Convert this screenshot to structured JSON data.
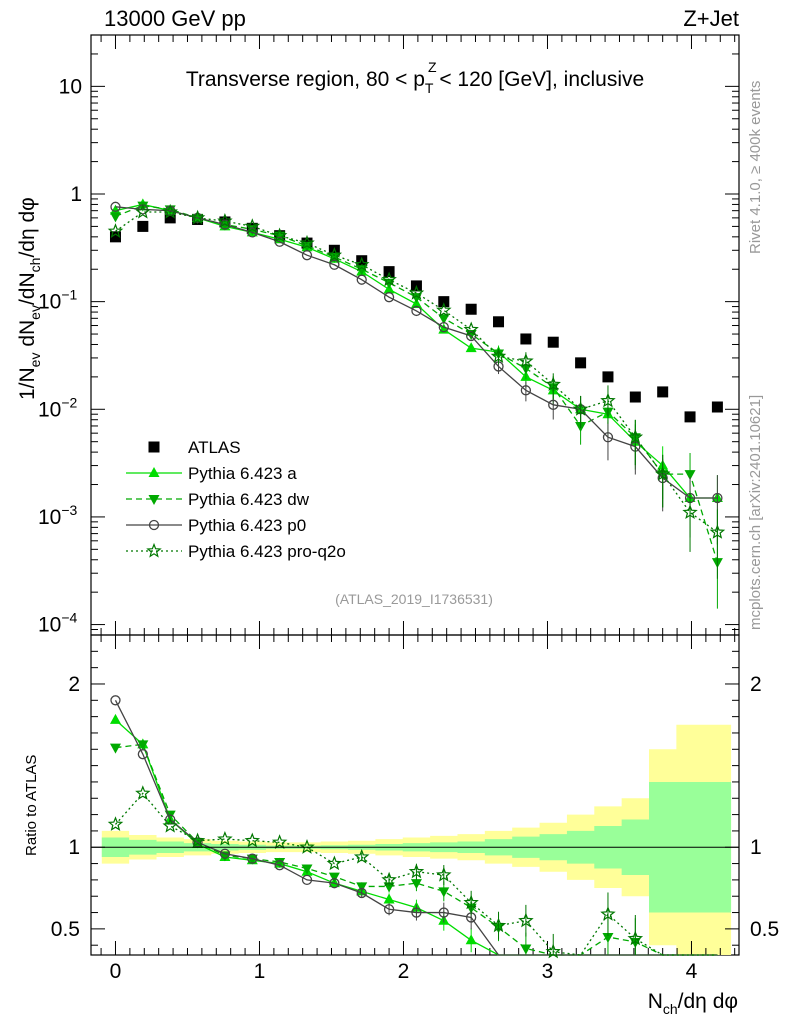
{
  "header": {
    "left": "13000 GeV pp",
    "right": "Z+Jet",
    "title_part1": "Transverse region, 80 < p",
    "title_sup": "Z",
    "title_sub": "T",
    "title_part2": " < 120 [GeV], inclusive"
  },
  "side_labels": {
    "rivet": "Rivet 4.1.0, ≥ 400k events",
    "mcplots": "mcplots.cern.ch [arXiv:2401.10621]"
  },
  "analysis_tag": "(ATLAS_2019_I1736531)",
  "colors": {
    "data": "#000000",
    "a": "#00dd00",
    "dw": "#00aa00",
    "p0": "#444444",
    "proq2o": "#007700",
    "band_yellow": "#ffff99",
    "band_green": "#99ff99"
  },
  "chart_data": [
    {
      "type": "scatter",
      "yscale": "log",
      "ylabel": "1/N_ev dN_ev/dN_ch/dη dφ",
      "ylim": [
        8e-05,
        30
      ],
      "xlim": [
        -0.17,
        4.33
      ],
      "yticks": [
        "10",
        "1",
        "10^-1",
        "10^-2",
        "10^-3",
        "10^-4"
      ],
      "legend_position": "middle-left",
      "legend": [
        "ATLAS",
        "Pythia 6.423 a",
        "Pythia 6.423 dw",
        "Pythia 6.423 p0",
        "Pythia 6.423 pro-q2o"
      ],
      "x": [
        0,
        0.19,
        0.38,
        0.57,
        0.76,
        0.95,
        1.14,
        1.33,
        1.52,
        1.71,
        1.9,
        2.09,
        2.28,
        2.47,
        2.66,
        2.85,
        3.04,
        3.23,
        3.42,
        3.61,
        3.8,
        3.99,
        4.18
      ],
      "series": [
        {
          "name": "ATLAS",
          "marker": "square",
          "values": [
            0.4,
            0.5,
            0.6,
            0.58,
            0.55,
            0.48,
            0.41,
            0.35,
            0.3,
            0.24,
            0.19,
            0.14,
            0.1,
            0.085,
            0.065,
            0.045,
            0.042,
            0.027,
            0.02,
            0.013,
            0.0145,
            0.0085,
            0.0105
          ]
        },
        {
          "name": "Pythia 6.423 a",
          "marker": "triangle-up",
          "line": "solid",
          "values": [
            0.7,
            0.8,
            0.7,
            0.6,
            0.5,
            0.44,
            0.38,
            0.32,
            0.25,
            0.19,
            0.13,
            0.095,
            0.055,
            0.037,
            0.034,
            0.02,
            0.015,
            0.01,
            0.009,
            0.005,
            0.003,
            0.0015,
            0.0015
          ]
        },
        {
          "name": "Pythia 6.423 dw",
          "marker": "triangle-down",
          "line": "dashed",
          "values": [
            0.62,
            0.78,
            0.72,
            0.6,
            0.52,
            0.47,
            0.41,
            0.33,
            0.26,
            0.2,
            0.15,
            0.11,
            0.07,
            0.05,
            0.033,
            0.024,
            0.016,
            0.007,
            0.0095,
            0.0055,
            0.0025,
            0.0025,
            0.00038
          ]
        },
        {
          "name": "Pythia 6.423 p0",
          "marker": "circle-open",
          "line": "solid",
          "values": [
            0.76,
            0.72,
            0.7,
            0.6,
            0.52,
            0.44,
            0.36,
            0.27,
            0.22,
            0.16,
            0.11,
            0.082,
            0.058,
            0.048,
            0.025,
            0.015,
            0.011,
            0.01,
            0.0055,
            0.0045,
            0.0023,
            0.0015,
            0.0015
          ]
        },
        {
          "name": "Pythia 6.423 pro-q2o",
          "marker": "star-open",
          "line": "dotted",
          "values": [
            0.45,
            0.68,
            0.68,
            0.6,
            0.56,
            0.5,
            0.41,
            0.35,
            0.27,
            0.22,
            0.16,
            0.12,
            0.083,
            0.055,
            0.031,
            0.028,
            0.017,
            0.01,
            0.012,
            0.0055,
            0.0025,
            0.0011,
            0.00072
          ]
        }
      ]
    },
    {
      "type": "scatter",
      "yscale": "linear",
      "ylabel": "Ratio to ATLAS",
      "xlabel": "N_ch/dη dφ",
      "ylim": [
        0.34,
        2.3
      ],
      "xlim": [
        -0.17,
        4.33
      ],
      "xticks": [
        "0",
        "1",
        "2",
        "3",
        "4"
      ],
      "yticks": [
        "0.5",
        "1",
        "2"
      ],
      "x": [
        0,
        0.19,
        0.38,
        0.57,
        0.76,
        0.95,
        1.14,
        1.33,
        1.52,
        1.71,
        1.9,
        2.09,
        2.28,
        2.47,
        2.66,
        2.85,
        3.04,
        3.23,
        3.42,
        3.61,
        3.8,
        3.99,
        4.18
      ],
      "bands": {
        "yellow_halfwidth": [
          0.1,
          0.075,
          0.06,
          0.05,
          0.04,
          0.035,
          0.03,
          0.03,
          0.035,
          0.04,
          0.05,
          0.06,
          0.07,
          0.08,
          0.1,
          0.12,
          0.15,
          0.2,
          0.25,
          0.3,
          0.6,
          0.75,
          0.75
        ],
        "green_halfwidth": [
          0.06,
          0.045,
          0.035,
          0.025,
          0.02,
          0.015,
          0.01,
          0.01,
          0.012,
          0.015,
          0.02,
          0.025,
          0.03,
          0.035,
          0.05,
          0.065,
          0.08,
          0.1,
          0.13,
          0.17,
          0.4,
          0.4,
          0.4
        ]
      },
      "series": [
        {
          "name": "Pythia 6.423 a",
          "values": [
            1.78,
            1.63,
            1.17,
            1.02,
            0.94,
            0.92,
            0.9,
            0.85,
            0.78,
            0.73,
            0.68,
            0.63,
            0.55,
            0.43,
            0.34,
            0.34,
            0.34,
            0.34,
            0.34,
            0.34,
            0.34,
            0.34,
            0.34
          ]
        },
        {
          "name": "Pythia 6.423 dw",
          "values": [
            1.61,
            1.63,
            1.2,
            1.03,
            0.95,
            0.93,
            0.91,
            0.87,
            0.82,
            0.76,
            0.76,
            0.78,
            0.73,
            0.63,
            0.51,
            0.38,
            0.34,
            0.34,
            0.45,
            0.42,
            0.34,
            0.34,
            0.34
          ]
        },
        {
          "name": "Pythia 6.423 p0",
          "values": [
            1.9,
            1.57,
            1.17,
            1.03,
            0.96,
            0.93,
            0.89,
            0.8,
            0.78,
            0.72,
            0.62,
            0.6,
            0.6,
            0.57,
            0.34,
            0.34,
            0.34,
            0.34,
            0.34,
            0.34,
            0.34,
            0.34,
            0.34
          ]
        },
        {
          "name": "Pythia 6.423 pro-q2o",
          "values": [
            1.14,
            1.33,
            1.13,
            1.04,
            1.05,
            1.04,
            1.03,
            1.0,
            0.9,
            0.94,
            0.8,
            0.85,
            0.83,
            0.66,
            0.52,
            0.55,
            0.36,
            0.34,
            0.59,
            0.44,
            0.34,
            0.34,
            0.34
          ]
        }
      ]
    }
  ]
}
